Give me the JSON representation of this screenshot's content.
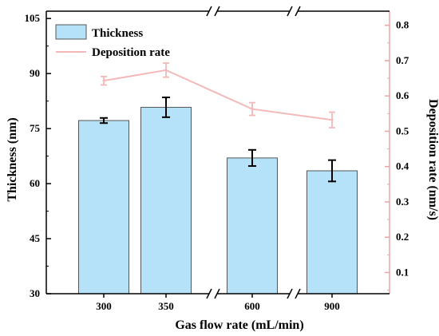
{
  "chart_data": {
    "type": "bar",
    "categories": [
      "300",
      "350",
      "600",
      "900"
    ],
    "xlabel": "Gas flow rate (mL/min)",
    "y_left": {
      "label": "Thickness (nm)",
      "ylim": [
        30,
        107
      ],
      "ticks": [
        "30",
        "45",
        "60",
        "75",
        "90",
        "105"
      ],
      "tick_values": [
        30,
        45,
        60,
        75,
        90,
        105
      ]
    },
    "y_right": {
      "label": "Deposition rate (nm/s)",
      "ylim": [
        0.04,
        0.84
      ],
      "ticks": [
        "0.1",
        "0.2",
        "0.3",
        "0.4",
        "0.5",
        "0.6",
        "0.7",
        "0.8"
      ],
      "tick_values": [
        0.1,
        0.2,
        0.3,
        0.4,
        0.5,
        0.6,
        0.7,
        0.8
      ]
    },
    "series": [
      {
        "name": "Thickness",
        "kind": "bar",
        "axis": "left",
        "values": [
          77.2,
          80.8,
          67.0,
          63.5
        ],
        "errors": [
          0.7,
          2.7,
          2.2,
          2.9
        ],
        "color": "#b5e2f9",
        "edge_color": "#555555"
      },
      {
        "name": "Deposition rate",
        "kind": "line",
        "axis": "right",
        "values": [
          0.643,
          0.673,
          0.563,
          0.532
        ],
        "errors": [
          0.012,
          0.02,
          0.018,
          0.022
        ],
        "color": "#f5b8b8"
      }
    ],
    "axis_breaks": true,
    "legend": "top-left",
    "grid": false,
    "colors": {
      "right_axis": "#f0a3a3",
      "left_axis": "#000000"
    }
  }
}
